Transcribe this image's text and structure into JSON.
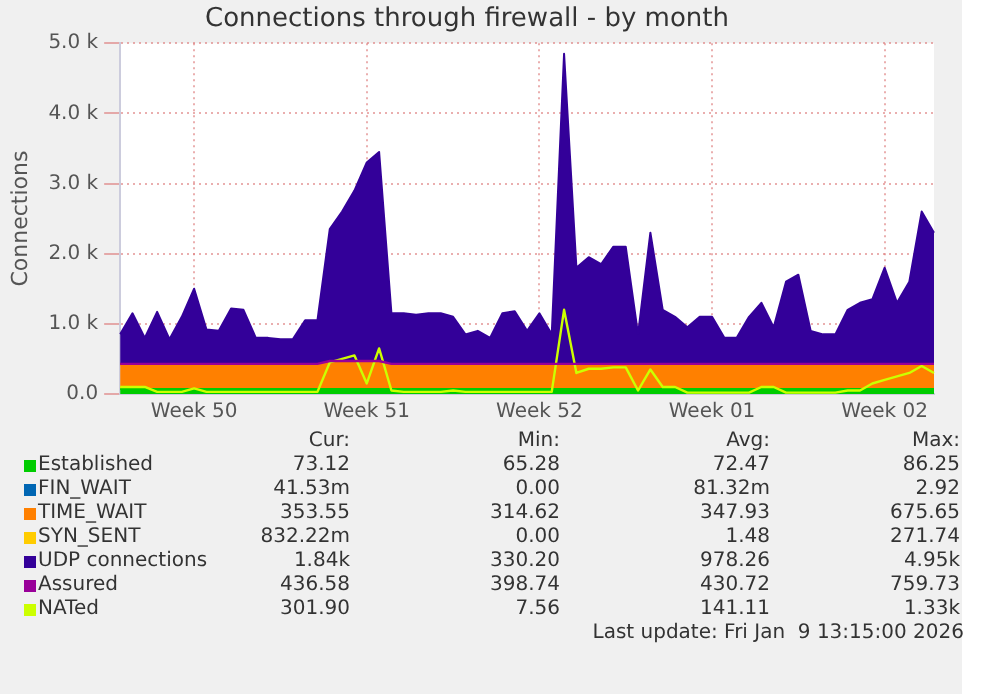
{
  "chart_data": {
    "type": "area",
    "title": "Connections through firewall - by month",
    "ylabel": "Connections",
    "stacked": true,
    "grid": true,
    "legend": "bottom",
    "categories": [
      null,
      null,
      null,
      null,
      null,
      null,
      "Week 50",
      null,
      null,
      null,
      null,
      null,
      null,
      null,
      null,
      null,
      null,
      null,
      null,
      null,
      "Week 51",
      null,
      null,
      null,
      null,
      null,
      null,
      null,
      null,
      null,
      null,
      null,
      null,
      null,
      "Week 52",
      null,
      null,
      null,
      null,
      null,
      null,
      null,
      null,
      null,
      null,
      null,
      null,
      null,
      "Week 01",
      null,
      null,
      null,
      null,
      null,
      null,
      null,
      null,
      null,
      null,
      null,
      null,
      null,
      "Week 02",
      null,
      null,
      null,
      null
    ],
    "ylim": [
      0,
      5000
    ],
    "yticks": [
      {
        "value": 0,
        "label": "0.0"
      },
      {
        "value": 1000,
        "label": "1.0 k"
      },
      {
        "value": 2000,
        "label": "2.0 k"
      },
      {
        "value": 3000,
        "label": "3.0 k"
      },
      {
        "value": 4000,
        "label": "4.0 k"
      },
      {
        "value": 5000,
        "label": "5.0 k"
      }
    ],
    "series": [
      {
        "name": "Established",
        "color": "#00cc00",
        "values": [
          70,
          70,
          70,
          70,
          70,
          70,
          70,
          70,
          70,
          70,
          70,
          70,
          70,
          70,
          70,
          70,
          70,
          70,
          70,
          70,
          70,
          70,
          70,
          70,
          70,
          70,
          70,
          70,
          70,
          70,
          70,
          70,
          70,
          70,
          70,
          70,
          70,
          70,
          70,
          70,
          70,
          70,
          70,
          70,
          70,
          70,
          70,
          70,
          70,
          70,
          70,
          70,
          70,
          70,
          70,
          70,
          70,
          70,
          70,
          70,
          70,
          70,
          70,
          70,
          70,
          70,
          70
        ]
      },
      {
        "name": "FIN_WAIT",
        "color": "#0066b3",
        "values": [
          null,
          null,
          null,
          null,
          null,
          null,
          null,
          null,
          null,
          null,
          null,
          null,
          null,
          null,
          null,
          null,
          null,
          null,
          null,
          null,
          null,
          null,
          null,
          null,
          null,
          null,
          null,
          null,
          null,
          null,
          null,
          null,
          null,
          null,
          null,
          null,
          null,
          null,
          null,
          null,
          null,
          null,
          null,
          null,
          null,
          null,
          null,
          null,
          null,
          null,
          null,
          null,
          null,
          null,
          null,
          null,
          null,
          null,
          null,
          null,
          null,
          null,
          null,
          null,
          null,
          null,
          null
        ]
      },
      {
        "name": "TIME_WAIT",
        "color": "#ff8000",
        "values": [
          350,
          350,
          350,
          350,
          350,
          350,
          350,
          350,
          350,
          350,
          350,
          350,
          350,
          350,
          350,
          350,
          350,
          380,
          380,
          380,
          380,
          380,
          350,
          350,
          350,
          350,
          350,
          350,
          350,
          350,
          350,
          350,
          350,
          350,
          350,
          350,
          350,
          350,
          350,
          350,
          350,
          350,
          350,
          350,
          350,
          350,
          350,
          350,
          350,
          350,
          350,
          350,
          350,
          350,
          350,
          350,
          350,
          350,
          350,
          350,
          350,
          350,
          350,
          350,
          350,
          350,
          350
        ]
      },
      {
        "name": "SYN_SENT",
        "color": "#ffcc00",
        "values": [
          null,
          null,
          null,
          null,
          null,
          null,
          null,
          null,
          null,
          null,
          null,
          null,
          null,
          null,
          null,
          null,
          null,
          null,
          null,
          null,
          null,
          null,
          null,
          null,
          null,
          null,
          null,
          null,
          null,
          null,
          null,
          null,
          null,
          null,
          null,
          null,
          null,
          null,
          null,
          null,
          null,
          null,
          null,
          null,
          null,
          null,
          null,
          null,
          null,
          null,
          null,
          null,
          null,
          null,
          null,
          null,
          null,
          null,
          null,
          null,
          null,
          null,
          null,
          null,
          null,
          null,
          null
        ]
      },
      {
        "name": "UDP connections",
        "color": "#330099",
        "values": [
          430,
          730,
          380,
          750,
          360,
          680,
          1080,
          500,
          480,
          800,
          780,
          380,
          380,
          360,
          360,
          630,
          630,
          1900,
          2150,
          2450,
          2850,
          3000,
          730,
          730,
          710,
          730,
          730,
          680,
          430,
          480,
          380,
          730,
          760,
          480,
          730,
          430,
          4430,
          1380,
          1530,
          1430,
          1680,
          1680,
          430,
          1880,
          780,
          680,
          530,
          680,
          680,
          380,
          380,
          680,
          880,
          530,
          1180,
          1280,
          480,
          430,
          430,
          780,
          880,
          930,
          1380,
          880,
          1180,
          2180,
          1880
        ]
      },
      {
        "name": "Assured",
        "type": "line",
        "color": "#990099",
        "values": [
          430,
          430,
          430,
          430,
          430,
          430,
          430,
          430,
          430,
          430,
          430,
          430,
          430,
          430,
          430,
          430,
          430,
          470,
          470,
          470,
          470,
          470,
          430,
          430,
          430,
          430,
          430,
          430,
          430,
          430,
          430,
          430,
          430,
          430,
          430,
          430,
          430,
          430,
          430,
          430,
          430,
          430,
          430,
          430,
          430,
          430,
          430,
          430,
          430,
          430,
          430,
          430,
          430,
          430,
          430,
          430,
          430,
          430,
          430,
          430,
          430,
          430,
          430,
          430,
          430,
          430,
          430
        ]
      },
      {
        "name": "NATed",
        "type": "line",
        "color": "#ccff00",
        "values": [
          100,
          100,
          100,
          30,
          30,
          30,
          80,
          30,
          30,
          30,
          30,
          30,
          30,
          30,
          30,
          30,
          30,
          450,
          500,
          550,
          150,
          650,
          50,
          30,
          30,
          30,
          30,
          50,
          30,
          30,
          30,
          30,
          30,
          30,
          30,
          30,
          1200,
          300,
          360,
          360,
          380,
          380,
          50,
          350,
          100,
          100,
          20,
          20,
          20,
          20,
          20,
          20,
          100,
          100,
          20,
          20,
          20,
          20,
          20,
          50,
          50,
          150,
          200,
          250,
          300,
          400,
          300
        ]
      }
    ],
    "annotations": [
      "Cur:",
      "Min:",
      "Avg:",
      "Max:",
      "73.12",
      "65.28",
      "72.47",
      "86.25",
      "41.53m",
      "0.00",
      "81.32m",
      "2.92",
      "353.55",
      "314.62",
      "347.93",
      "675.65",
      "832.22m",
      "0.00",
      "1.48",
      "271.74",
      "1.84k",
      "330.20",
      "978.26",
      "4.95k",
      "436.58",
      "398.74",
      "430.72",
      "759.73",
      "301.90",
      "7.56",
      "141.11",
      "1.33k",
      "Last update: Fri Jan  9 13:15:00 2026"
    ]
  }
}
